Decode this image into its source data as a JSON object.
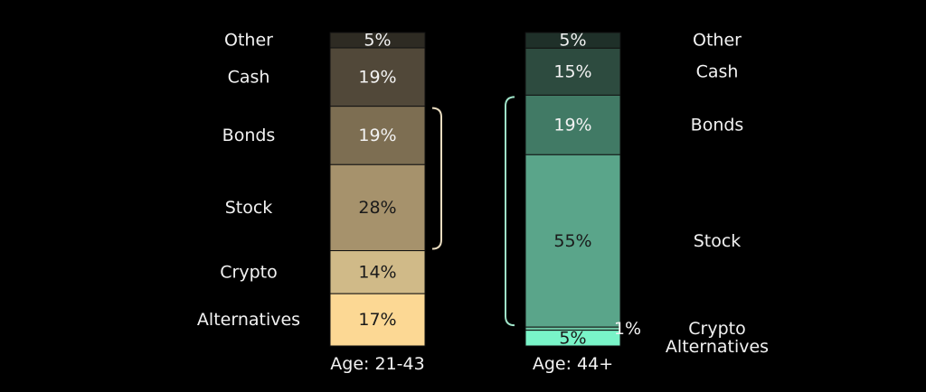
{
  "chart_data": {
    "type": "bar",
    "stacked": true,
    "unit": "%",
    "bars": [
      {
        "name": "Age: 21-43",
        "segments": [
          {
            "category": "Other",
            "value": 5,
            "label": "5%",
            "color": "#2e2b23",
            "text_color": "#f2f2f2"
          },
          {
            "category": "Cash",
            "value": 19,
            "label": "19%",
            "color": "#514839",
            "text_color": "#f2f2f2"
          },
          {
            "category": "Bonds",
            "value": 19,
            "label": "19%",
            "color": "#7d6e52",
            "text_color": "#f2f2f2"
          },
          {
            "category": "Stock",
            "value": 28,
            "label": "28%",
            "color": "#a6926c",
            "text_color": "#1a1a1a"
          },
          {
            "category": "Crypto",
            "value": 14,
            "label": "14%",
            "color": "#d0ba88",
            "text_color": "#1a1a1a"
          },
          {
            "category": "Alternatives",
            "value": 17,
            "label": "17%",
            "color": "#fcd894",
            "text_color": "#1a1a1a"
          }
        ]
      },
      {
        "name": "Age: 44+",
        "segments": [
          {
            "category": "Other",
            "value": 5,
            "label": "5%",
            "color": "#1f3029",
            "text_color": "#f2f2f2"
          },
          {
            "category": "Cash",
            "value": 15,
            "label": "15%",
            "color": "#2d4b3f",
            "text_color": "#f2f2f2"
          },
          {
            "category": "Bonds",
            "value": 19,
            "label": "19%",
            "color": "#417a65",
            "text_color": "#f2f2f2"
          },
          {
            "category": "Stock",
            "value": 55,
            "label": "55%",
            "color": "#5aa58a",
            "text_color": "#1a1a1a"
          },
          {
            "category": "Crypto",
            "value": 1,
            "label": "1%",
            "color": "#6cc4a2",
            "text_color": "#f2f2f2"
          },
          {
            "category": "Alternatives",
            "value": 5,
            "label": "5%",
            "color": "#79f4c8",
            "text_color": "#1a1a1a"
          }
        ]
      }
    ],
    "brackets": [
      {
        "bar": "Age: 21-43",
        "spans": [
          "Bonds",
          "Stock"
        ],
        "color": "#e9dcc0"
      },
      {
        "bar": "Age: 44+",
        "spans": [
          "Bonds",
          "Stock"
        ],
        "color": "#9fe3c8"
      }
    ]
  }
}
